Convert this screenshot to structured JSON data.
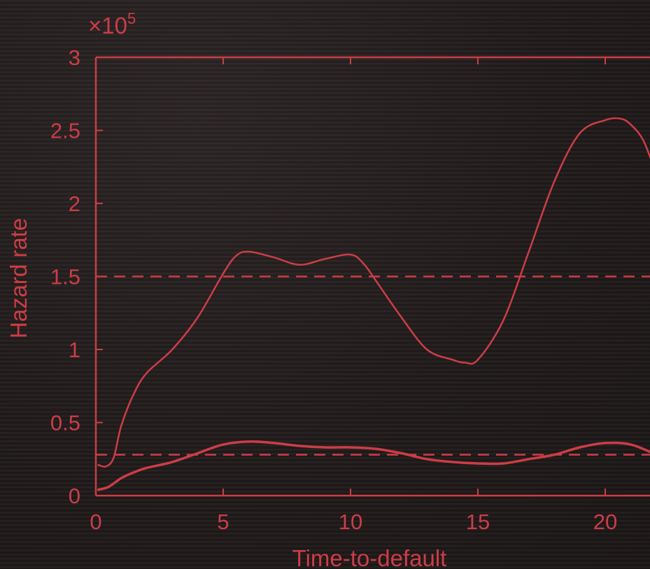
{
  "chart_data": {
    "type": "line",
    "title": "",
    "xlabel": "Time-to-default",
    "ylabel": "Hazard rate",
    "y_multiplier": {
      "base": "×10",
      "exp": "5"
    },
    "xlim": [
      0,
      22
    ],
    "ylim": [
      0,
      3
    ],
    "x_ticks": [
      0,
      5,
      10,
      15,
      20
    ],
    "y_ticks": [
      0,
      0.5,
      1,
      1.5,
      2,
      2.5,
      3
    ],
    "x_tick_labels": [
      "0",
      "5",
      "10",
      "15",
      "20"
    ],
    "y_tick_labels": [
      "0",
      "0.5",
      "1",
      "1.5",
      "2",
      "2.5",
      "3"
    ],
    "grid": false,
    "legend": "none",
    "colors": {
      "line": "#cc3d47",
      "background": "#231c1c"
    },
    "series": [
      {
        "style": "solid",
        "x": [
          0.1,
          0.4,
          0.7,
          1.0,
          1.5,
          2.0,
          3.0,
          4.0,
          5.0,
          5.5,
          6.0,
          7.0,
          8.0,
          9.0,
          10.0,
          10.5,
          11.0,
          12.0,
          13.0,
          14.0,
          14.5,
          15.0,
          16.0,
          17.0,
          18.0,
          19.0,
          20.0,
          20.6,
          21.0,
          21.5,
          22.0
        ],
        "values": [
          0.21,
          0.2,
          0.26,
          0.48,
          0.7,
          0.84,
          1.0,
          1.22,
          1.52,
          1.64,
          1.67,
          1.63,
          1.58,
          1.62,
          1.65,
          1.59,
          1.47,
          1.22,
          1.0,
          0.93,
          0.91,
          0.93,
          1.2,
          1.67,
          2.15,
          2.48,
          2.57,
          2.58,
          2.54,
          2.43,
          2.2
        ]
      },
      {
        "style": "solid",
        "x": [
          0.1,
          0.5,
          1.0,
          1.5,
          2.0,
          3.0,
          4.0,
          5.0,
          6.0,
          7.0,
          8.0,
          9.0,
          10.0,
          11.0,
          12.0,
          13.0,
          14.0,
          15.0,
          16.0,
          17.0,
          18.0,
          19.0,
          20.0,
          21.0,
          22.0
        ],
        "values": [
          0.04,
          0.06,
          0.12,
          0.16,
          0.19,
          0.23,
          0.29,
          0.35,
          0.37,
          0.36,
          0.34,
          0.33,
          0.33,
          0.32,
          0.29,
          0.25,
          0.23,
          0.22,
          0.22,
          0.25,
          0.28,
          0.33,
          0.36,
          0.35,
          0.28
        ]
      },
      {
        "style": "dashed",
        "x": [
          0,
          22
        ],
        "values": [
          1.5,
          1.5
        ]
      },
      {
        "style": "dashed",
        "x": [
          0,
          22
        ],
        "values": [
          0.28,
          0.28
        ]
      }
    ]
  }
}
